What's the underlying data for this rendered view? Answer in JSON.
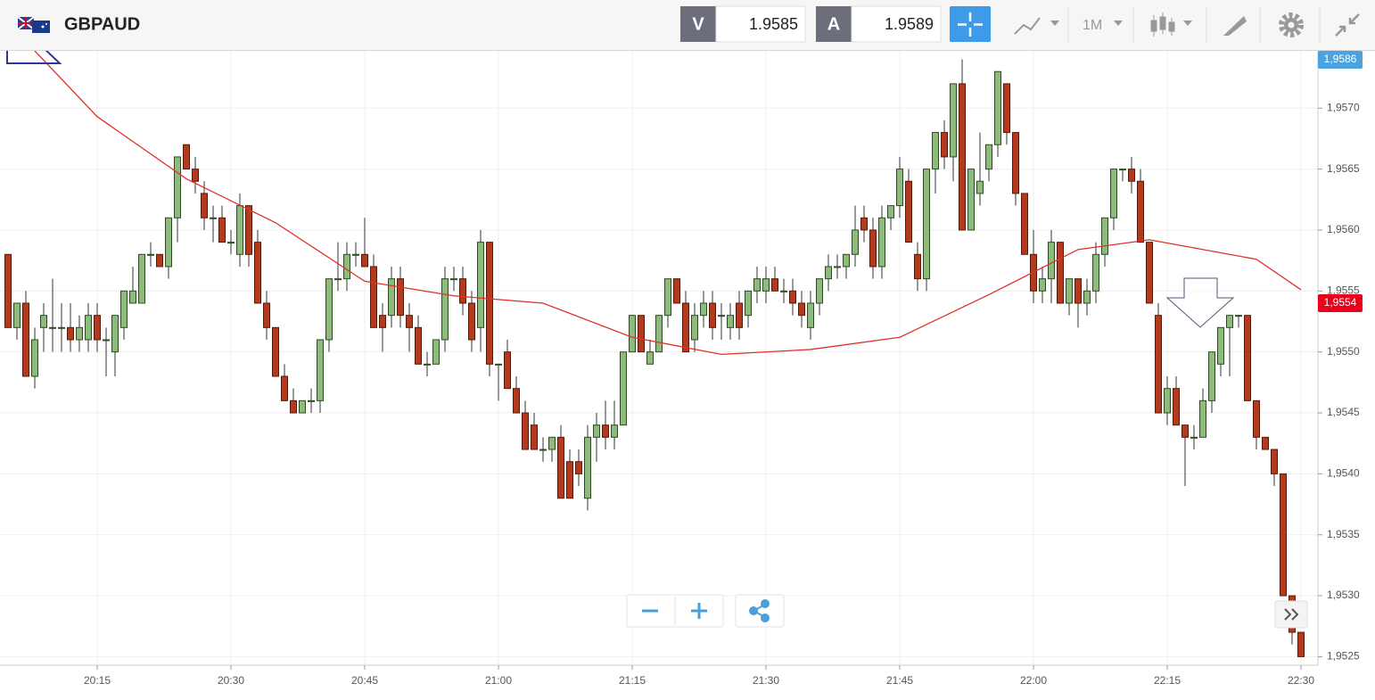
{
  "header": {
    "symbol": "GBPAUD",
    "bid_label": "V",
    "bid": "1.9585",
    "ask_label": "A",
    "ask": "1.9589",
    "timeframe": "1M"
  },
  "chart_data": {
    "type": "candlestick",
    "x": [
      "20:05",
      "20:06",
      "20:07",
      "20:08",
      "20:09",
      "20:10",
      "20:11",
      "20:12",
      "20:13",
      "20:14",
      "20:15",
      "20:16",
      "20:17",
      "20:18",
      "20:19",
      "20:20",
      "20:21",
      "20:22",
      "20:23",
      "20:24",
      "20:25",
      "20:26",
      "20:27",
      "20:28",
      "20:29",
      "20:30",
      "20:31",
      "20:32",
      "20:33",
      "20:34",
      "20:35",
      "20:36",
      "20:37",
      "20:38",
      "20:39",
      "20:40",
      "20:41",
      "20:42",
      "20:43",
      "20:44",
      "20:45",
      "20:46",
      "20:47",
      "20:48",
      "20:49",
      "20:50",
      "20:51",
      "20:52",
      "20:53",
      "20:54",
      "20:55",
      "20:56",
      "20:57",
      "20:58",
      "20:59",
      "21:00",
      "21:01",
      "21:02",
      "21:03",
      "21:04",
      "21:05",
      "21:06",
      "21:07",
      "21:08",
      "21:09",
      "21:10",
      "21:11",
      "21:12",
      "21:13",
      "21:14",
      "21:15",
      "21:16",
      "21:17",
      "21:18",
      "21:19",
      "21:20",
      "21:21",
      "21:22",
      "21:23",
      "21:24",
      "21:25",
      "21:26",
      "21:27",
      "21:28",
      "21:29",
      "21:30",
      "21:31",
      "21:32",
      "21:33",
      "21:34",
      "21:35",
      "21:36",
      "21:37",
      "21:38",
      "21:39",
      "21:40",
      "21:41",
      "21:42",
      "21:43",
      "21:44",
      "21:45",
      "21:46",
      "21:47",
      "21:48",
      "21:49",
      "21:50",
      "21:51",
      "21:52",
      "21:53",
      "21:54",
      "21:55",
      "21:56",
      "21:57",
      "21:58",
      "21:59",
      "22:00",
      "22:01",
      "22:02",
      "22:03",
      "22:04",
      "22:05",
      "22:06",
      "22:07",
      "22:08",
      "22:09",
      "22:10",
      "22:11",
      "22:12",
      "22:13",
      "22:14",
      "22:15",
      "22:16",
      "22:17",
      "22:18",
      "22:19",
      "22:20",
      "22:21",
      "22:22",
      "22:23",
      "22:24",
      "22:25",
      "22:26",
      "22:27",
      "22:28",
      "22:29",
      "22:30"
    ],
    "open": [
      1.9558,
      1.9552,
      1.9554,
      1.9548,
      1.9552,
      1.9552,
      1.9552,
      1.9552,
      1.9551,
      1.9551,
      1.9553,
      1.9551,
      1.955,
      1.9552,
      1.9554,
      1.9554,
      1.9558,
      1.9558,
      1.9557,
      1.9561,
      1.9567,
      1.9565,
      1.9563,
      1.9561,
      1.9561,
      1.9559,
      1.9558,
      1.9562,
      1.9559,
      1.9554,
      1.9552,
      1.9548,
      1.9546,
      1.9545,
      1.9546,
      1.9546,
      1.9551,
      1.9556,
      1.9556,
      1.9558,
      1.9558,
      1.9557,
      1.9553,
      1.9553,
      1.9556,
      1.9553,
      1.9552,
      1.9549,
      1.9549,
      1.9551,
      1.9556,
      1.9556,
      1.9554,
      1.9552,
      1.9559,
      1.9549,
      1.955,
      1.9547,
      1.9545,
      1.9544,
      1.9542,
      1.9542,
      1.9543,
      1.9541,
      1.9541,
      1.9538,
      1.9543,
      1.9544,
      1.9543,
      1.9544,
      1.955,
      1.9553,
      1.9549,
      1.955,
      1.9553,
      1.9556,
      1.9554,
      1.9551,
      1.9553,
      1.9554,
      1.9553,
      1.9552,
      1.9554,
      1.9553,
      1.9555,
      1.9555,
      1.9556,
      1.9555,
      1.9555,
      1.9554,
      1.9552,
      1.9554,
      1.9556,
      1.9557,
      1.9557,
      1.9558,
      1.9561,
      1.956,
      1.9557,
      1.9561,
      1.9562,
      1.9564,
      1.9558,
      1.9556,
      1.9565,
      1.9568,
      1.9566,
      1.9572,
      1.956,
      1.9563,
      1.9565,
      1.9567,
      1.9572,
      1.9568,
      1.9563,
      1.9558,
      1.9555,
      1.9556,
      1.9559,
      1.9554,
      1.9556,
      1.9554,
      1.9555,
      1.9558,
      1.9561,
      1.9565,
      1.9565,
      1.9564,
      1.9559,
      1.9553,
      1.9545,
      1.9547,
      1.9544,
      1.9543,
      1.9543,
      1.9546,
      1.9549,
      1.9552,
      1.9553,
      1.9553,
      1.9546,
      1.9543,
      1.9542,
      1.954,
      1.953,
      1.9527
    ],
    "high": [
      1.9558,
      1.9554,
      1.9555,
      1.9552,
      1.9554,
      1.9556,
      1.9554,
      1.9554,
      1.9553,
      1.9554,
      1.9554,
      1.9552,
      1.9553,
      1.9555,
      1.9557,
      1.9558,
      1.9559,
      1.9558,
      1.9561,
      1.9566,
      1.9567,
      1.9566,
      1.9564,
      1.9562,
      1.9562,
      1.956,
      1.9563,
      1.9562,
      1.956,
      1.9555,
      1.9552,
      1.9549,
      1.9547,
      1.9546,
      1.9547,
      1.9551,
      1.9556,
      1.9559,
      1.9559,
      1.9559,
      1.9561,
      1.9558,
      1.9554,
      1.9557,
      1.9557,
      1.9554,
      1.9553,
      1.955,
      1.9551,
      1.9557,
      1.9557,
      1.9557,
      1.9555,
      1.956,
      1.9559,
      1.9549,
      1.9551,
      1.9548,
      1.9546,
      1.9545,
      1.9543,
      1.9543,
      1.9544,
      1.9542,
      1.9542,
      1.9544,
      1.9545,
      1.9546,
      1.9546,
      1.955,
      1.9553,
      1.9553,
      1.9551,
      1.9553,
      1.9556,
      1.9556,
      1.9555,
      1.9554,
      1.9555,
      1.9555,
      1.9554,
      1.9554,
      1.9555,
      1.9555,
      1.9557,
      1.9557,
      1.9557,
      1.9556,
      1.9556,
      1.9555,
      1.9555,
      1.9556,
      1.9558,
      1.9558,
      1.9558,
      1.9562,
      1.9562,
      1.9561,
      1.9562,
      1.9562,
      1.9566,
      1.9565,
      1.9559,
      1.9565,
      1.9568,
      1.9569,
      1.9572,
      1.9574,
      1.9565,
      1.9568,
      1.9567,
      1.9573,
      1.9572,
      1.9568,
      1.9563,
      1.956,
      1.9557,
      1.956,
      1.9559,
      1.9556,
      1.9556,
      1.9556,
      1.9559,
      1.9561,
      1.9565,
      1.9565,
      1.9566,
      1.9565,
      1.9559,
      1.9554,
      1.9548,
      1.9548,
      1.9544,
      1.9544,
      1.9547,
      1.955,
      1.9552,
      1.9553,
      1.9553,
      1.9553,
      1.9546,
      1.9543,
      1.9542,
      1.954,
      1.953,
      1.9527
    ],
    "low": [
      1.9552,
      1.9551,
      1.9548,
      1.9547,
      1.955,
      1.955,
      1.955,
      1.955,
      1.955,
      1.955,
      1.955,
      1.9548,
      1.9548,
      1.9551,
      1.9554,
      1.9554,
      1.9557,
      1.9557,
      1.9556,
      1.9559,
      1.9565,
      1.9563,
      1.956,
      1.9559,
      1.9559,
      1.9558,
      1.9557,
      1.9557,
      1.9554,
      1.9551,
      1.9548,
      1.9546,
      1.9545,
      1.9545,
      1.9545,
      1.9545,
      1.955,
      1.9555,
      1.9555,
      1.9557,
      1.9557,
      1.9552,
      1.955,
      1.9552,
      1.9552,
      1.955,
      1.9549,
      1.9548,
      1.9549,
      1.955,
      1.9555,
      1.9553,
      1.955,
      1.955,
      1.9548,
      1.9546,
      1.9547,
      1.9545,
      1.9542,
      1.9542,
      1.9541,
      1.9541,
      1.9538,
      1.9538,
      1.9539,
      1.9537,
      1.9541,
      1.9542,
      1.9542,
      1.9544,
      1.955,
      1.955,
      1.9549,
      1.955,
      1.9552,
      1.9554,
      1.955,
      1.955,
      1.9552,
      1.9551,
      1.9551,
      1.9551,
      1.9551,
      1.9552,
      1.9554,
      1.9554,
      1.9555,
      1.9554,
      1.9553,
      1.9552,
      1.9551,
      1.9553,
      1.9555,
      1.9556,
      1.9556,
      1.9557,
      1.9559,
      1.9556,
      1.9556,
      1.956,
      1.9561,
      1.9559,
      1.9555,
      1.9555,
      1.9563,
      1.9565,
      1.9564,
      1.956,
      1.956,
      1.9562,
      1.9564,
      1.9566,
      1.9567,
      1.9562,
      1.9558,
      1.9554,
      1.9554,
      1.9554,
      1.9554,
      1.9553,
      1.9552,
      1.9553,
      1.9554,
      1.9557,
      1.956,
      1.9564,
      1.9563,
      1.9559,
      1.9554,
      1.9545,
      1.9544,
      1.9544,
      1.9539,
      1.9542,
      1.9543,
      1.9545,
      1.9548,
      1.9548,
      1.9552,
      1.9546,
      1.9542,
      1.9542,
      1.9539,
      1.953,
      1.9526,
      1.9525
    ],
    "close": [
      1.9552,
      1.9554,
      1.9548,
      1.9551,
      1.9553,
      1.9552,
      1.9552,
      1.9551,
      1.9552,
      1.9553,
      1.9551,
      1.9551,
      1.9553,
      1.9555,
      1.9555,
      1.9558,
      1.9558,
      1.9557,
      1.9561,
      1.9566,
      1.9565,
      1.9564,
      1.9561,
      1.9561,
      1.9559,
      1.9559,
      1.9562,
      1.9558,
      1.9554,
      1.9552,
      1.9548,
      1.9546,
      1.9545,
      1.9546,
      1.9546,
      1.9551,
      1.9556,
      1.9556,
      1.9558,
      1.9558,
      1.9557,
      1.9552,
      1.9552,
      1.9556,
      1.9553,
      1.9552,
      1.9549,
      1.9549,
      1.9551,
      1.9556,
      1.9556,
      1.9554,
      1.9551,
      1.9559,
      1.9549,
      1.9549,
      1.9547,
      1.9545,
      1.9542,
      1.9542,
      1.9542,
      1.9543,
      1.9538,
      1.9538,
      1.954,
      1.9543,
      1.9544,
      1.9543,
      1.9544,
      1.955,
      1.9553,
      1.955,
      1.955,
      1.9553,
      1.9556,
      1.9554,
      1.955,
      1.9553,
      1.9554,
      1.9552,
      1.9553,
      1.9553,
      1.9552,
      1.9555,
      1.9556,
      1.9556,
      1.9555,
      1.9555,
      1.9554,
      1.9553,
      1.9554,
      1.9556,
      1.9557,
      1.9557,
      1.9558,
      1.956,
      1.956,
      1.9557,
      1.9561,
      1.9562,
      1.9565,
      1.9559,
      1.9556,
      1.9565,
      1.9568,
      1.9566,
      1.9572,
      1.956,
      1.9565,
      1.9564,
      1.9567,
      1.9573,
      1.9568,
      1.9563,
      1.9558,
      1.9555,
      1.9556,
      1.9559,
      1.9554,
      1.9556,
      1.9554,
      1.9555,
      1.9558,
      1.9561,
      1.9565,
      1.9565,
      1.9564,
      1.9559,
      1.9554,
      1.9545,
      1.9547,
      1.9544,
      1.9543,
      1.9543,
      1.9546,
      1.955,
      1.9552,
      1.9553,
      1.9553,
      1.9546,
      1.9543,
      1.9542,
      1.954,
      1.953,
      1.9527,
      1.9525
    ],
    "up_color": "#8dbb7c",
    "down_color": "#b33a1c",
    "ma": {
      "color": "#e0302a",
      "x": [
        "20:08",
        "20:15",
        "20:25",
        "20:35",
        "20:45",
        "20:55",
        "21:05",
        "21:15",
        "21:25",
        "21:35",
        "21:45",
        "21:55",
        "22:05",
        "22:13",
        "22:25",
        "22:30"
      ],
      "values": [
        1.95747,
        1.95693,
        1.95642,
        1.95606,
        1.95558,
        1.95546,
        1.9554,
        1.95512,
        1.95498,
        1.95502,
        1.95512,
        1.95547,
        1.95584,
        1.95592,
        1.95576,
        1.95551
      ]
    },
    "ylim": [
      1.95243,
      1.95747
    ],
    "yticks": [
      {
        "value": 1.9525,
        "label": "1,9525"
      },
      {
        "value": 1.953,
        "label": "1,9530"
      },
      {
        "value": 1.9535,
        "label": "1,9535"
      },
      {
        "value": 1.954,
        "label": "1,9540"
      },
      {
        "value": 1.9545,
        "label": "1,9545"
      },
      {
        "value": 1.955,
        "label": "1,9550"
      },
      {
        "value": 1.9555,
        "label": "1,9555"
      },
      {
        "value": 1.956,
        "label": "1,9560"
      },
      {
        "value": 1.9565,
        "label": "1,9565"
      },
      {
        "value": 1.957,
        "label": "1,9570"
      }
    ],
    "xticks": [
      "20:15",
      "20:30",
      "20:45",
      "21:00",
      "21:15",
      "21:30",
      "21:45",
      "22:00",
      "22:15",
      "22:30"
    ],
    "price_badges": [
      {
        "value": 1.9586,
        "label": "1,9586",
        "color": "#4aa3df"
      },
      {
        "value": 1.9554,
        "label": "1,9554",
        "color": "#e8001c"
      }
    ],
    "grid": true
  }
}
